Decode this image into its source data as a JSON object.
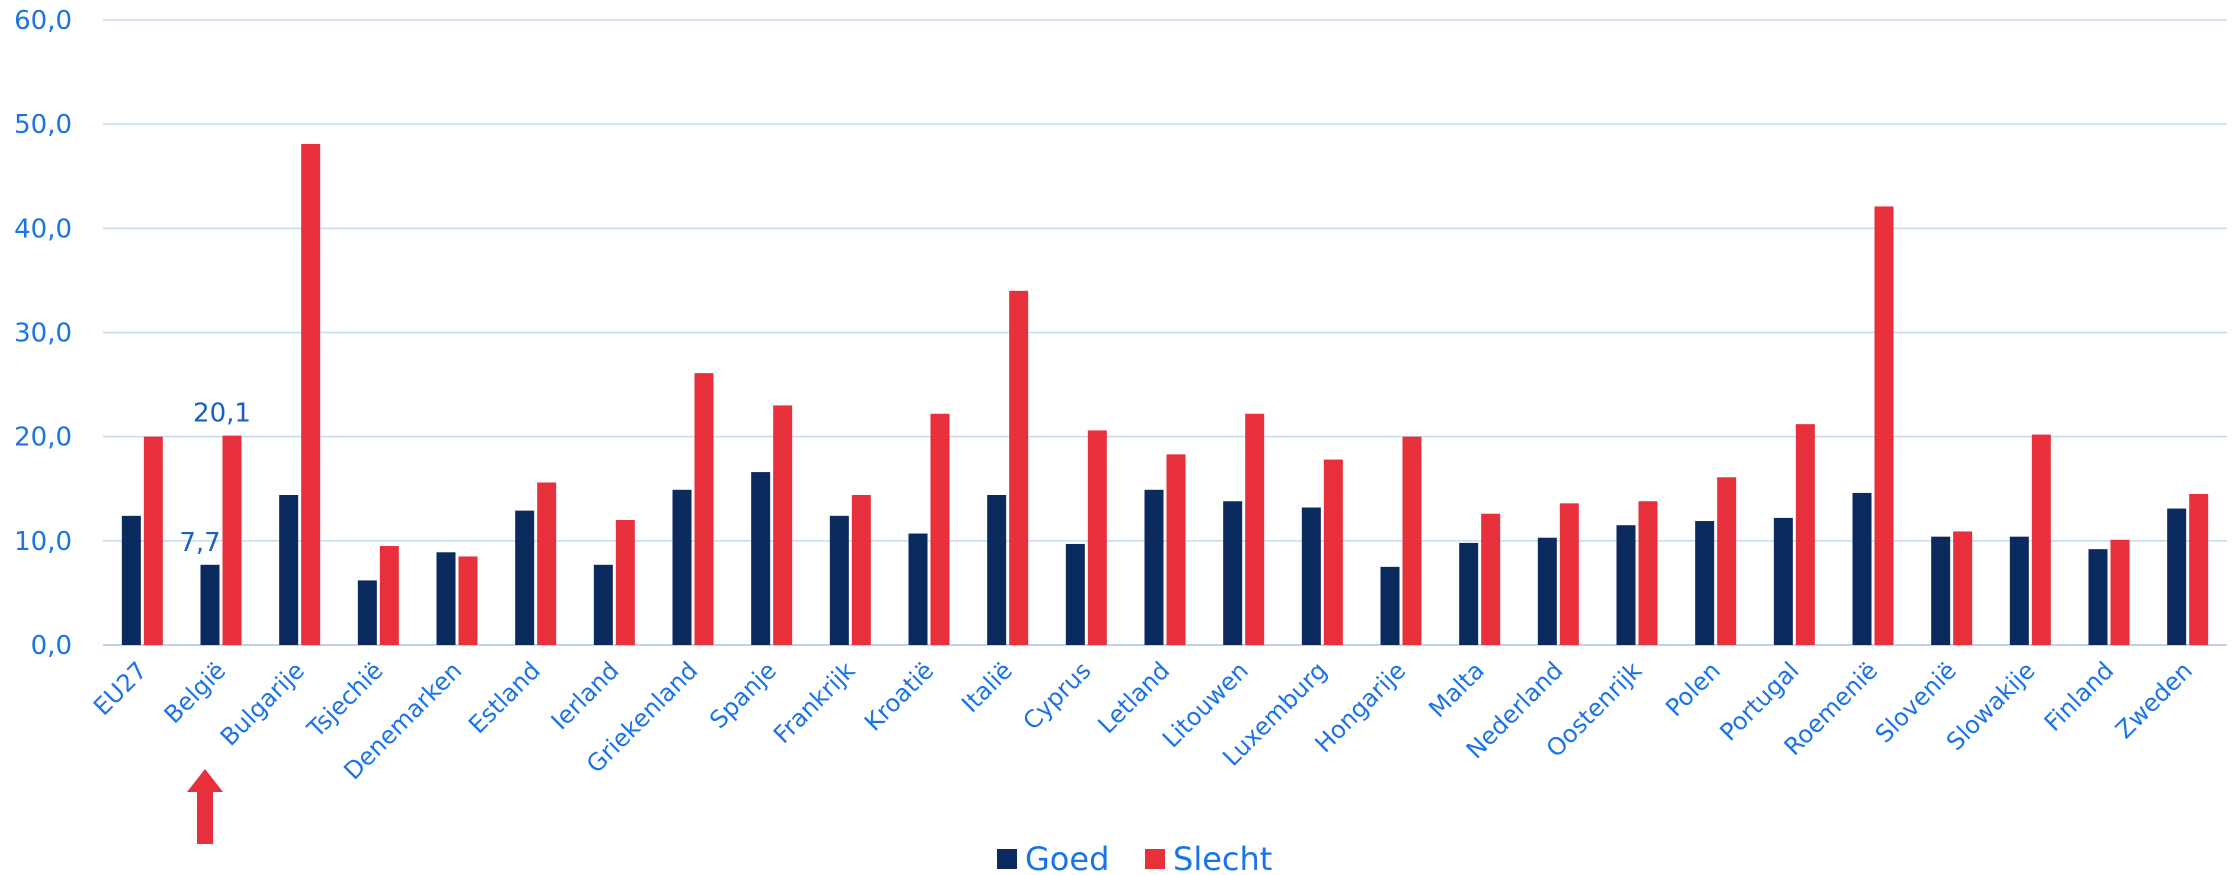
{
  "chart_data": {
    "type": "bar",
    "categories": [
      "EU27",
      "België",
      "Bulgarije",
      "Tsjechië",
      "Denemarken",
      "Estland",
      "Ierland",
      "Griekenland",
      "Spanje",
      "Frankrijk",
      "Kroatië",
      "Italië",
      "Cyprus",
      "Letland",
      "Litouwen",
      "Luxemburg",
      "Hongarije",
      "Malta",
      "Nederland",
      "Oostenrijk",
      "Polen",
      "Portugal",
      "Roemenië",
      "Slovenië",
      "Slowakije",
      "Finland",
      "Zweden"
    ],
    "series": [
      {
        "name": "Goed",
        "color": "#0b2a5e",
        "values": [
          12.4,
          7.7,
          14.4,
          6.2,
          8.9,
          12.9,
          7.7,
          14.9,
          16.6,
          12.4,
          10.7,
          14.4,
          9.7,
          14.9,
          13.8,
          13.2,
          7.5,
          9.8,
          10.3,
          11.5,
          11.9,
          12.2,
          14.6,
          10.4,
          10.4,
          9.2,
          13.1
        ]
      },
      {
        "name": "Slecht",
        "color": "#e8303c",
        "values": [
          20.0,
          20.1,
          48.1,
          9.5,
          8.5,
          15.6,
          12.0,
          26.1,
          23.0,
          14.4,
          22.2,
          34.0,
          20.6,
          18.3,
          22.2,
          17.8,
          20.0,
          12.6,
          13.6,
          13.8,
          16.1,
          21.2,
          42.1,
          10.9,
          20.2,
          10.1,
          14.5
        ]
      }
    ],
    "data_labels": [
      {
        "category_index": 1,
        "series_index": 0,
        "text": "7,7"
      },
      {
        "category_index": 1,
        "series_index": 1,
        "text": "20,1"
      }
    ],
    "y_ticks": [
      "0,0",
      "10,0",
      "20,0",
      "30,0",
      "40,0",
      "50,0",
      "60,0"
    ],
    "ylim": [
      0,
      60
    ],
    "grid": true,
    "legend_position": "bottom-center",
    "title": "",
    "xlabel": "",
    "ylabel": "",
    "highlight_arrow": {
      "category_index": 1,
      "color": "#e8303c"
    }
  }
}
